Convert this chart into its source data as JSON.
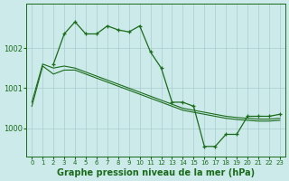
{
  "bg_color": "#cceaea",
  "grid_color": "#aacccc",
  "line_color": "#1a6b1a",
  "title": "Graphe pression niveau de la mer (hPa)",
  "title_fontsize": 7,
  "ylabel_values": [
    1000,
    1001,
    1002
  ],
  "ylabel_fontsize": 6,
  "xtick_fontsize": 5,
  "xlim": [
    -0.5,
    23.5
  ],
  "ylim": [
    999.3,
    1003.1
  ],
  "series1_x": [
    0,
    1,
    2,
    3,
    4,
    5,
    6,
    7,
    8,
    9,
    10,
    11,
    12,
    13,
    14,
    15,
    16,
    17,
    18,
    19,
    20,
    21,
    22,
    23
  ],
  "series1_y": [
    1000.55,
    1001.55,
    1001.35,
    1001.45,
    1001.45,
    1001.35,
    1001.25,
    1001.15,
    1001.05,
    1000.95,
    1000.85,
    1000.75,
    1000.65,
    1000.55,
    1000.45,
    1000.4,
    1000.35,
    1000.3,
    1000.25,
    1000.22,
    1000.2,
    1000.18,
    1000.18,
    1000.2
  ],
  "series2_x": [
    0,
    1,
    2,
    3,
    4,
    5,
    6,
    7,
    8,
    9,
    10,
    11,
    12,
    13,
    14,
    15,
    16,
    17,
    18,
    19,
    20,
    21,
    22,
    23
  ],
  "series2_y": [
    1000.65,
    1001.6,
    1001.5,
    1001.55,
    1001.5,
    1001.4,
    1001.3,
    1001.2,
    1001.1,
    1001.0,
    1000.9,
    1000.8,
    1000.7,
    1000.6,
    1000.5,
    1000.45,
    1000.4,
    1000.35,
    1000.3,
    1000.27,
    1000.25,
    1000.23,
    1000.23,
    1000.25
  ],
  "series3_x": [
    2,
    3,
    4,
    5,
    6,
    7,
    8,
    9,
    10,
    11,
    12,
    13,
    14,
    15,
    16,
    17,
    18,
    19,
    20,
    21,
    22,
    23
  ],
  "series3_y": [
    1001.6,
    1002.35,
    1002.65,
    1002.35,
    1002.35,
    1002.55,
    1002.45,
    1002.4,
    1002.55,
    1001.9,
    1001.5,
    1000.65,
    1000.65,
    1000.55,
    999.55,
    999.55,
    999.85,
    999.85,
    1000.3,
    1000.3,
    1000.3,
    1000.35
  ],
  "xtick_labels": [
    "0",
    "1",
    "2",
    "3",
    "4",
    "5",
    "6",
    "7",
    "8",
    "9",
    "10",
    "11",
    "12",
    "13",
    "14",
    "15",
    "16",
    "17",
    "18",
    "19",
    "20",
    "21",
    "22",
    "23"
  ]
}
